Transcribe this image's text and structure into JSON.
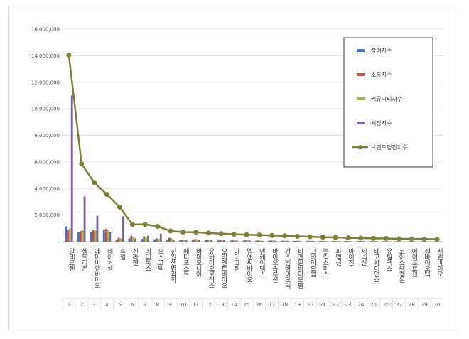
{
  "chart_data": {
    "type": "bar",
    "title": "",
    "xlabel": "",
    "ylabel": "",
    "ylim": [
      0,
      16000000
    ],
    "y_ticks": [
      "-",
      "2,000,000",
      "4,000,000",
      "6,000,000",
      "8,000,000",
      "10,000,000",
      "12,000,000",
      "14,000,000",
      "16,000,000"
    ],
    "grid": true,
    "legend_position": "top-right",
    "ranks": [
      "1",
      "2",
      "3",
      "4",
      "5",
      "6",
      "7",
      "8",
      "9",
      "10",
      "11",
      "12",
      "13",
      "14",
      "15",
      "16",
      "17",
      "18",
      "19",
      "20",
      "21",
      "22",
      "23",
      "24",
      "25",
      "26",
      "27",
      "28",
      "29",
      "30"
    ],
    "categories": [
      "알테오젠",
      "셀트리온",
      "에이비엘바이오",
      "네이처셀",
      "휴젤",
      "신라젠",
      "메디톡스",
      "오스코텍",
      "진원생명과학",
      "메디포스트",
      "바이오니아",
      "유바이오로직스",
      "오리엔트바이오",
      "아미코젠",
      "엘앤씨바이오",
      "엔케이맥스",
      "바이오솔루션",
      "강스템바이오텍",
      "티앤알바이오팹",
      "고바이오랩",
      "헬릭스미스",
      "파멥신",
      "아이진",
      "제넥신",
      "테고사이언스",
      "유틸렉스",
      "코아스템켐온",
      "에이프로젠",
      "셀바이오텍",
      "서린바이오"
    ],
    "series": [
      {
        "name": "참여지수",
        "color": "#4472c4",
        "values": [
          1150000,
          750000,
          750000,
          850000,
          150000,
          250000,
          200000,
          180000,
          120000,
          100000,
          150000,
          120000,
          100000,
          80000,
          80000,
          70000,
          70000,
          70000,
          60000,
          50000,
          50000,
          40000,
          40000,
          40000,
          40000,
          30000,
          30000,
          30000,
          30000,
          20000
        ]
      },
      {
        "name": "소통지수",
        "color": "#c0504d",
        "values": [
          900000,
          800000,
          850000,
          950000,
          300000,
          450000,
          380000,
          250000,
          300000,
          120000,
          200000,
          150000,
          130000,
          100000,
          100000,
          90000,
          90000,
          80000,
          70000,
          60000,
          60000,
          50000,
          50000,
          50000,
          50000,
          40000,
          40000,
          40000,
          40000,
          30000
        ]
      },
      {
        "name": "커뮤니티지수",
        "color": "#9bbb59",
        "values": [
          1000000,
          900000,
          900000,
          900000,
          250000,
          350000,
          300000,
          200000,
          250000,
          150000,
          200000,
          150000,
          150000,
          120000,
          120000,
          100000,
          100000,
          90000,
          80000,
          80000,
          70000,
          60000,
          60000,
          60000,
          60000,
          50000,
          50000,
          50000,
          50000,
          40000
        ]
      },
      {
        "name": "시장지수",
        "color": "#8064a2",
        "values": [
          11000000,
          3400000,
          1950000,
          750000,
          1900000,
          250000,
          450000,
          600000,
          100000,
          100000,
          150000,
          100000,
          150000,
          80000,
          80000,
          60000,
          70000,
          60000,
          50000,
          60000,
          40000,
          40000,
          30000,
          40000,
          40000,
          30000,
          30000,
          30000,
          20000,
          20000
        ]
      }
    ],
    "line": {
      "name": "브랜드평판지수",
      "color": "#7f7f3a",
      "values": [
        14050000,
        5850000,
        4450000,
        3550000,
        2600000,
        1300000,
        1300000,
        1150000,
        800000,
        720000,
        710000,
        650000,
        600000,
        560000,
        520000,
        500000,
        470000,
        440000,
        400000,
        370000,
        340000,
        320000,
        290000,
        270000,
        250000,
        240000,
        220000,
        210000,
        200000,
        180000
      ]
    }
  }
}
